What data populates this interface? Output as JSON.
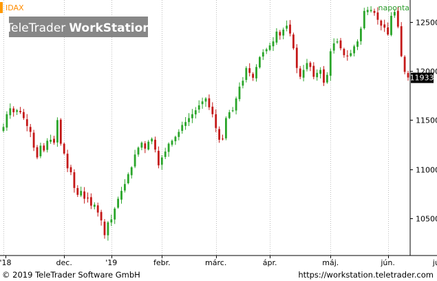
{
  "chart_data": {
    "type": "candlestick",
    "symbol": "IDAX",
    "interval": "naponta",
    "last_price": "11933",
    "watermark": {
      "text_light": "TeleTrader",
      "text_bold": "WorkStation"
    },
    "y_ticks": [
      10500,
      11000,
      11500,
      12000,
      12500
    ],
    "ylim": [
      10130,
      12700
    ],
    "x_labels": [
      "'18",
      "dec.",
      "'19",
      "febr.",
      "márc.",
      "ápr.",
      "máj.",
      "jún.",
      "júl."
    ],
    "x_label_positions": [
      0,
      18,
      32,
      47,
      63,
      79,
      97,
      114,
      129
    ],
    "month_separators": [
      0,
      18,
      32,
      47,
      63,
      79,
      97,
      114,
      129
    ],
    "colors": {
      "up": "#2aa52a",
      "down": "#c41818",
      "accent": "#ff9900",
      "symbol_text": "#ff8c00",
      "interval_text": "#2a9a2a"
    },
    "closes": [
      11430,
      11560,
      11620,
      11580,
      11600,
      11580,
      11520,
      11440,
      11380,
      11220,
      11120,
      11240,
      11190,
      11290,
      11300,
      11270,
      11500,
      11260,
      11160,
      11010,
      10970,
      10810,
      10740,
      10780,
      10700,
      10710,
      10630,
      10640,
      10560,
      10480,
      10330,
      10460,
      10490,
      10600,
      10700,
      10780,
      10850,
      10950,
      11020,
      11150,
      11220,
      11270,
      11210,
      11280,
      11310,
      11200,
      11040,
      11120,
      11180,
      11260,
      11290,
      11330,
      11380,
      11450,
      11480,
      11520,
      11560,
      11600,
      11650,
      11690,
      11720,
      11630,
      11560,
      11420,
      11300,
      11310,
      11520,
      11580,
      11600,
      11720,
      11840,
      11900,
      12030,
      11980,
      11930,
      12040,
      12140,
      12190,
      12220,
      12260,
      12300,
      12400,
      12360,
      12420,
      12460,
      12380,
      12230,
      12030,
      11940,
      12010,
      12080,
      12040,
      11940,
      11980,
      12010,
      11880,
      11960,
      12200,
      12280,
      12300,
      12230,
      12160,
      12150,
      12180,
      12250,
      12300,
      12430,
      12610,
      12620,
      12620,
      12590,
      12520,
      12460,
      12440,
      12370,
      12560,
      12600,
      12450,
      12150,
      11990,
      11933
    ]
  },
  "footer": {
    "copyright": "© 2019 TeleTrader Software GmbH",
    "url": "https://workstation.teletrader.com"
  }
}
